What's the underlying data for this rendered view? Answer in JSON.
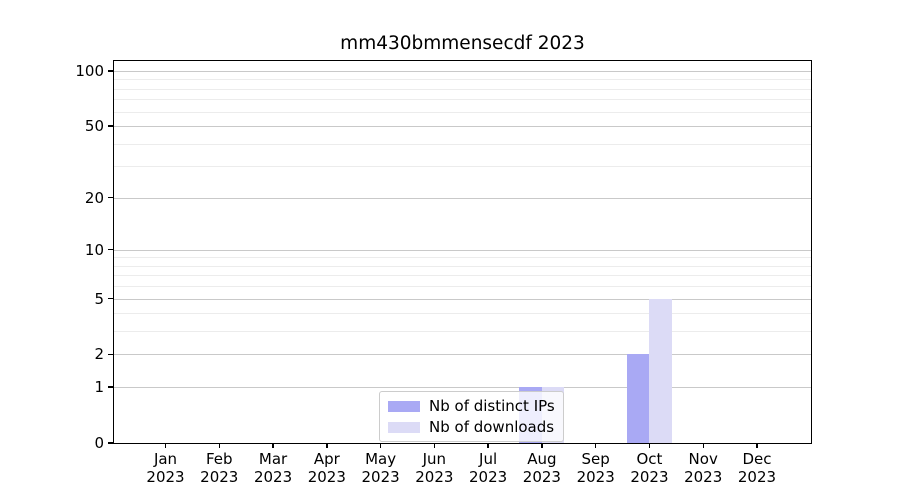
{
  "page": {
    "background": "#ffffff"
  },
  "chart_data": {
    "type": "bar",
    "title": "mm430bmmensecdf 2023",
    "categories": [
      "Jan 2023",
      "Feb 2023",
      "Mar 2023",
      "Apr 2023",
      "May 2023",
      "Jun 2023",
      "Jul 2023",
      "Aug 2023",
      "Sep 2023",
      "Oct 2023",
      "Nov 2023",
      "Dec 2023"
    ],
    "series": [
      {
        "name": "Nb of distinct IPs",
        "color": "#a9a9f4",
        "values": [
          0,
          0,
          0,
          0,
          0,
          0,
          0,
          1,
          0,
          2,
          0,
          0
        ]
      },
      {
        "name": "Nb of downloads",
        "color": "#dcdbf6",
        "values": [
          0,
          0,
          0,
          0,
          0,
          0,
          0,
          1,
          0,
          5,
          0,
          0
        ]
      }
    ],
    "xlabel": "",
    "ylabel": "",
    "ylim": [
      0,
      100
    ],
    "yscale": "log1p",
    "yticks": [
      0,
      1,
      2,
      5,
      10,
      20,
      50,
      100
    ],
    "minor_yticks": [
      3,
      4,
      6,
      7,
      8,
      9,
      30,
      40,
      60,
      70,
      80,
      90
    ],
    "grid": "horizontal",
    "legend_position": "lower-center"
  },
  "colors": {
    "grid_major": "#c9c9c9",
    "grid_minor": "#ececec",
    "axis": "#000000",
    "legend_border": "#cccccc"
  }
}
